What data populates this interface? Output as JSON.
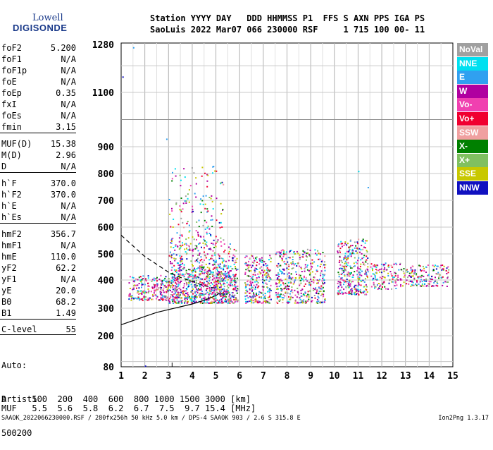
{
  "logo": {
    "line1": "Lowell",
    "line2": "DIGISONDE"
  },
  "header": {
    "line1": "Station YYYY DAY   DDD HHMMSS P1  FFS S AXN PPS IGA PS",
    "line2": "SaoLuis 2022 Mar07 066 230000 RSF     1 715 100 00- 11"
  },
  "params": [
    {
      "k": "foF2",
      "v": "5.200"
    },
    {
      "k": "foF1",
      "v": "N/A"
    },
    {
      "k": "foF1p",
      "v": "N/A"
    },
    {
      "k": "foE",
      "v": "N/A"
    },
    {
      "k": "foEp",
      "v": "0.35"
    },
    {
      "k": "fxI",
      "v": "N/A"
    },
    {
      "k": "foEs",
      "v": "N/A"
    },
    {
      "k": "fmin",
      "v": "3.15"
    },
    {
      "k": "MUF(D)",
      "v": "15.38"
    },
    {
      "k": "M(D)",
      "v": "2.96"
    },
    {
      "k": "D",
      "v": "N/A"
    },
    {
      "k": "h`F",
      "v": "370.0"
    },
    {
      "k": "h`F2",
      "v": "370.0"
    },
    {
      "k": "h`E",
      "v": "N/A"
    },
    {
      "k": "h`Es",
      "v": "N/A"
    },
    {
      "k": "hmF2",
      "v": "356.7"
    },
    {
      "k": "hmF1",
      "v": "N/A"
    },
    {
      "k": "hmE",
      "v": "110.0"
    },
    {
      "k": "yF2",
      "v": "62.2"
    },
    {
      "k": "yF1",
      "v": "N/A"
    },
    {
      "k": "yE",
      "v": "20.0"
    },
    {
      "k": "B0",
      "v": "68.2"
    },
    {
      "k": "B1",
      "v": "1.49"
    },
    {
      "k": "C-level",
      "v": "55"
    }
  ],
  "auto": {
    "line1": "Auto:",
    "line2": "Artist5",
    "line3": "500200"
  },
  "footer": {
    "line1": "D     100  200  400  600  800 1000 1500 3000 [km]",
    "line2": "MUF   5.5  5.6  5.8  6.2  6.7  7.5  9.7 15.4 [MHz]",
    "line3": "SAAOK_2022066230000.RSF / 280fx256h 50 kHz 5.0 km / DPS-4 SAAOK 903 / 2.6 S 315.8 E",
    "line4": "Ion2Png 1.3.17"
  },
  "legend": [
    {
      "label": "NoVal",
      "color": "#a0a0a0"
    },
    {
      "label": "NNE",
      "color": "#00e0f0"
    },
    {
      "label": "E",
      "color": "#30a0f0"
    },
    {
      "label": "W",
      "color": "#b000a0"
    },
    {
      "label": "Vo-",
      "color": "#f040b0"
    },
    {
      "label": "Vo+",
      "color": "#f00030"
    },
    {
      "label": "SSW",
      "color": "#f0a0a0"
    },
    {
      "label": "X-",
      "color": "#008000"
    },
    {
      "label": "X+",
      "color": "#80c060"
    },
    {
      "label": "SSE",
      "color": "#c8c800"
    },
    {
      "label": "NNW",
      "color": "#1010c0"
    }
  ],
  "chart_data": {
    "type": "scatter",
    "x_ticks": [
      1,
      2,
      3,
      4,
      5,
      6,
      7,
      8,
      9,
      10,
      11,
      12,
      13,
      14,
      15
    ],
    "y_ticks": [
      80,
      200,
      300,
      400,
      500,
      600,
      700,
      800,
      900,
      1100,
      1280
    ],
    "xlim": [
      1,
      15
    ],
    "yscale": "reciprocal",
    "grid": true,
    "legend_placement": "right",
    "scatter_regions": [
      {
        "fmin": 1.3,
        "fmax": 3.0,
        "hmin": 330,
        "hmax": 420,
        "density": 220
      },
      {
        "fmin": 3.0,
        "fmax": 5.9,
        "hmin": 320,
        "hmax": 430,
        "density": 700
      },
      {
        "fmin": 3.0,
        "fmax": 5.9,
        "hmin": 430,
        "hmax": 540,
        "density": 260
      },
      {
        "fmin": 3.0,
        "fmax": 5.3,
        "hmin": 540,
        "hmax": 830,
        "density": 160
      },
      {
        "fmin": 6.2,
        "fmax": 7.3,
        "hmin": 320,
        "hmax": 500,
        "density": 260
      },
      {
        "fmin": 7.5,
        "fmax": 9.6,
        "hmin": 320,
        "hmax": 520,
        "density": 420
      },
      {
        "fmin": 10.1,
        "fmax": 11.4,
        "hmin": 350,
        "hmax": 560,
        "density": 320
      },
      {
        "fmin": 11.5,
        "fmax": 12.8,
        "hmin": 370,
        "hmax": 470,
        "density": 120
      },
      {
        "fmin": 12.8,
        "fmax": 14.8,
        "hmin": 380,
        "hmax": 460,
        "density": 160
      }
    ],
    "o_trace": [
      {
        "f": 1.0,
        "h": 240
      },
      {
        "f": 1.5,
        "h": 255
      },
      {
        "f": 2.0,
        "h": 270
      },
      {
        "f": 2.5,
        "h": 285
      },
      {
        "f": 3.0,
        "h": 295
      },
      {
        "f": 3.5,
        "h": 305
      },
      {
        "f": 4.0,
        "h": 315
      },
      {
        "f": 4.5,
        "h": 328
      },
      {
        "f": 5.0,
        "h": 345
      },
      {
        "f": 5.2,
        "h": 356
      }
    ],
    "x_trace": [
      {
        "f": 1.0,
        "h": 570
      },
      {
        "f": 1.5,
        "h": 530
      },
      {
        "f": 2.0,
        "h": 490
      },
      {
        "f": 2.5,
        "h": 460
      },
      {
        "f": 3.0,
        "h": 430
      },
      {
        "f": 3.5,
        "h": 410
      },
      {
        "f": 4.0,
        "h": 395
      },
      {
        "f": 4.5,
        "h": 380
      },
      {
        "f": 5.0,
        "h": 370
      }
    ],
    "fmin_marker": 3.15
  }
}
